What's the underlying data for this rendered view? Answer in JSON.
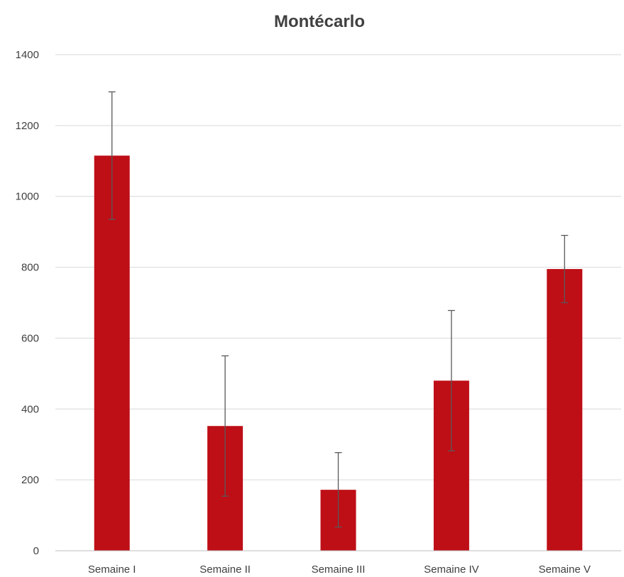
{
  "chart_data": {
    "type": "bar",
    "title": "Montécarlo",
    "categories": [
      "Semaine I",
      "Semaine II",
      "Semaine III",
      "Semaine IV",
      "Semaine V"
    ],
    "values": [
      1115,
      352,
      172,
      480,
      795
    ],
    "error_bars": [
      180,
      198,
      105,
      198,
      95
    ],
    "ylim": [
      0,
      1400
    ],
    "yticks": [
      0,
      200,
      400,
      600,
      800,
      1000,
      1200,
      1400
    ],
    "grid": true,
    "bar_color": "#be0e16",
    "error_bar_color": "#595959"
  }
}
